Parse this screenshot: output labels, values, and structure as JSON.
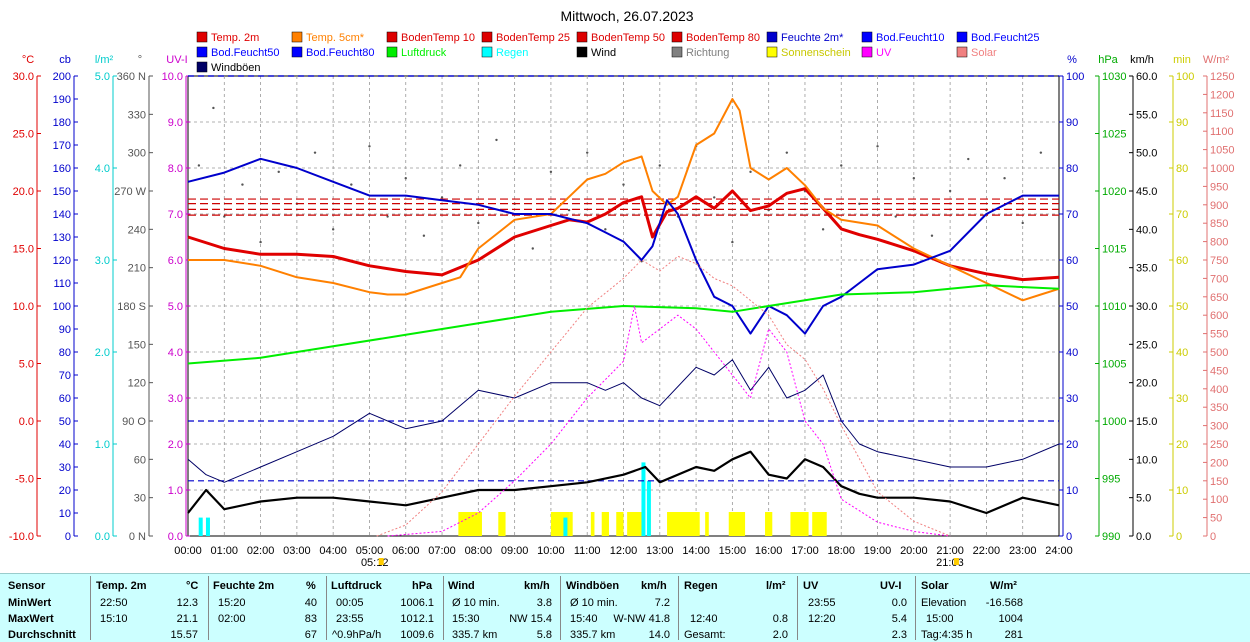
{
  "chart_data": {
    "type": "line",
    "title": "Mittwoch, 26.07.2023",
    "x": [
      "00:00",
      "01:00",
      "02:00",
      "03:00",
      "04:00",
      "05:00",
      "06:00",
      "07:00",
      "08:00",
      "09:00",
      "10:00",
      "11:00",
      "12:00",
      "13:00",
      "14:00",
      "15:00",
      "16:00",
      "17:00",
      "18:00",
      "19:00",
      "20:00",
      "21:00",
      "22:00",
      "23:00",
      "24:00"
    ],
    "markers": {
      "sunrise": "05:12",
      "sunset": "21:03"
    },
    "grid": true,
    "legend_position": "top",
    "axes": {
      "left": [
        {
          "unit": "°C",
          "ticks": [
            "30.0",
            "25.0",
            "20.0",
            "15.0",
            "10.0",
            "5.0",
            "0.0",
            "-5.0",
            "-10.0"
          ],
          "color": "#e00000"
        },
        {
          "unit": "cb",
          "ticks": [
            "200",
            "190",
            "180",
            "170",
            "160",
            "150",
            "140",
            "130",
            "120",
            "110",
            "100",
            "90",
            "80",
            "70",
            "60",
            "50",
            "40",
            "30",
            "20",
            "10",
            "0"
          ],
          "color": "#0000cc"
        },
        {
          "unit": "l/m²",
          "ticks": [
            "5.0",
            "4.0",
            "3.0",
            "2.0",
            "1.0",
            "0.0"
          ],
          "color": "#00cccc"
        },
        {
          "unit": "°",
          "ticks": [
            "360 N",
            "330",
            "300",
            "270 W",
            "240",
            "210",
            "180 S",
            "150",
            "120",
            "90 O",
            "60",
            "30",
            "0 N"
          ],
          "color": "#555555"
        },
        {
          "unit": "UV-I",
          "ticks": [
            "10.0",
            "9.0",
            "8.0",
            "7.0",
            "6.0",
            "5.0",
            "4.0",
            "3.0",
            "2.0",
            "1.0",
            "0.0"
          ],
          "color": "#cc00cc"
        }
      ],
      "right": [
        {
          "unit": "%",
          "ticks": [
            "100",
            "90",
            "80",
            "70",
            "60",
            "50",
            "40",
            "30",
            "20",
            "10",
            "0"
          ],
          "color": "#0000cc"
        },
        {
          "unit": "hPa",
          "ticks": [
            "1030",
            "1025",
            "1020",
            "1015",
            "1010",
            "1005",
            "1000",
            "995",
            "990"
          ],
          "color": "#00aa00"
        },
        {
          "unit": "km/h",
          "ticks": [
            "60.0",
            "55.0",
            "50.0",
            "45.0",
            "40.0",
            "35.0",
            "30.0",
            "25.0",
            "20.0",
            "15.0",
            "10.0",
            "5.0",
            "0.0"
          ],
          "color": "#000000"
        },
        {
          "unit": "min",
          "ticks": [
            "100",
            "90",
            "80",
            "70",
            "60",
            "50",
            "40",
            "30",
            "20",
            "10",
            "0"
          ],
          "color": "#cccc00"
        },
        {
          "unit": "W/m²",
          "ticks": [
            "1250",
            "1200",
            "1150",
            "1100",
            "1050",
            "1000",
            "950",
            "900",
            "850",
            "800",
            "750",
            "700",
            "650",
            "600",
            "550",
            "500",
            "450",
            "400",
            "350",
            "300",
            "250",
            "200",
            "150",
            "100",
            "50",
            "0"
          ],
          "color": "#e07070"
        }
      ]
    },
    "legend": [
      {
        "name": "Temp. 2m",
        "color": "#e00000"
      },
      {
        "name": "Temp. 5cm*",
        "color": "#ff8000"
      },
      {
        "name": "BodenTemp 10",
        "color": "#dd0000"
      },
      {
        "name": "BodenTemp 25",
        "color": "#dd0000"
      },
      {
        "name": "BodenTemp 50",
        "color": "#dd0000"
      },
      {
        "name": "BodenTemp 80",
        "color": "#dd0000"
      },
      {
        "name": "Feuchte 2m*",
        "color": "#0000cc"
      },
      {
        "name": "Bod.Feucht10",
        "color": "#0000ff"
      },
      {
        "name": "Bod.Feucht25",
        "color": "#0000ff"
      },
      {
        "name": "Bod.Feucht50",
        "color": "#0000ff"
      },
      {
        "name": "Bod.Feucht80",
        "color": "#0000ff"
      },
      {
        "name": "Luftdruck",
        "color": "#00ee00"
      },
      {
        "name": "Regen",
        "color": "#00ffff"
      },
      {
        "name": "Wind",
        "color": "#000000"
      },
      {
        "name": "Richtung",
        "color": "#808080"
      },
      {
        "name": "Sonnenschein",
        "color": "#ffff00"
      },
      {
        "name": "UV",
        "color": "#ff00ff"
      },
      {
        "name": "Solar",
        "color": "#f08080"
      },
      {
        "name": "Windböen",
        "color": "#000066"
      }
    ],
    "series": [
      {
        "name": "Temp. 2m",
        "axis": "°C",
        "color": "#e00000",
        "x": [
          0,
          1,
          2,
          3,
          4,
          5,
          6,
          7,
          8,
          9,
          10,
          10.5,
          11,
          11.5,
          12,
          12.5,
          12.8,
          13.2,
          13.5,
          14,
          14.5,
          15,
          15.5,
          16,
          16.5,
          17,
          17.5,
          18,
          18.5,
          19,
          20,
          21,
          22,
          23,
          24
        ],
        "y": [
          16.0,
          15.0,
          14.5,
          14.5,
          14.3,
          13.5,
          13.0,
          12.7,
          14.0,
          16.0,
          17.0,
          17.5,
          17.3,
          18.0,
          19.0,
          19.5,
          16.0,
          18.2,
          18.5,
          19.5,
          18.5,
          20.0,
          18.3,
          18.7,
          19.8,
          20.2,
          18.5,
          16.7,
          16.2,
          15.8,
          14.8,
          13.5,
          12.8,
          12.3,
          12.5
        ]
      },
      {
        "name": "Temp. 5cm*",
        "axis": "°C",
        "color": "#ff8000",
        "x": [
          0,
          1,
          2,
          3,
          4,
          5,
          5.5,
          6,
          7,
          7.5,
          8,
          9,
          10,
          10.5,
          11,
          11.5,
          12,
          12.5,
          12.8,
          13.2,
          13.5,
          14,
          14.5,
          15,
          15.2,
          15.5,
          16,
          16.5,
          17,
          17.5,
          18,
          19,
          20,
          21,
          22,
          23,
          23.5,
          24
        ],
        "y": [
          14.0,
          14.0,
          13.5,
          12.5,
          12.0,
          11.2,
          11.0,
          11.0,
          12.0,
          12.5,
          15.0,
          17.5,
          18.0,
          19.5,
          21.0,
          21.5,
          22.5,
          23.0,
          20.0,
          18.8,
          19.5,
          24.0,
          25.0,
          28.0,
          27.0,
          22.0,
          21.0,
          22.0,
          20.5,
          18.5,
          17.5,
          17.0,
          15.0,
          13.5,
          12.0,
          10.5,
          11.0,
          11.5
        ]
      },
      {
        "name": "Feuchte 2m*",
        "axis": "%",
        "color": "#0000cc",
        "x": [
          0,
          1,
          2,
          3,
          4,
          5,
          6,
          7,
          8,
          9,
          10,
          10.5,
          11,
          11.5,
          12,
          12.5,
          12.8,
          13.2,
          13.5,
          14,
          14.5,
          15,
          15.5,
          16,
          16.5,
          17,
          17.5,
          18,
          18.5,
          19,
          20,
          21,
          22,
          23,
          24
        ],
        "y": [
          77,
          79,
          82,
          80,
          77,
          74,
          74,
          73,
          72,
          70,
          70,
          69,
          68,
          66,
          64,
          60,
          63,
          73,
          70,
          60,
          52,
          50,
          44,
          50,
          48,
          44,
          50,
          52,
          55,
          58,
          59,
          62,
          70,
          74,
          74
        ]
      },
      {
        "name": "Luftdruck",
        "axis": "hPa",
        "color": "#00ee00",
        "x": [
          0,
          2,
          4,
          6,
          8,
          10,
          12,
          14,
          15,
          16,
          18,
          20,
          22,
          24
        ],
        "y": [
          1005.0,
          1005.5,
          1006.5,
          1007.5,
          1008.5,
          1009.5,
          1010.0,
          1009.8,
          1009.5,
          1010.0,
          1011.0,
          1011.2,
          1011.8,
          1011.5
        ]
      },
      {
        "name": "Wind",
        "axis": "km/h",
        "color": "#000000",
        "x": [
          0,
          0.5,
          1,
          2,
          3,
          4,
          5,
          6,
          7,
          8,
          9,
          10,
          11,
          12,
          12.6,
          13,
          14,
          14.5,
          15,
          15.5,
          16,
          16.5,
          17,
          17.5,
          18,
          18.5,
          19,
          20,
          21,
          22,
          23,
          24
        ],
        "y": [
          3,
          6,
          3.5,
          4.5,
          5,
          5,
          4.5,
          4,
          5,
          6,
          6,
          6.5,
          7,
          8,
          9,
          7,
          9,
          8.5,
          10,
          11,
          8,
          7.5,
          10,
          9,
          6.5,
          5.5,
          5,
          5,
          4.5,
          3,
          5,
          4
        ]
      },
      {
        "name": "Windböen",
        "axis": "km/h",
        "color": "#000066",
        "x": [
          0,
          0.5,
          1,
          2,
          3,
          4,
          5,
          6,
          7,
          8,
          9,
          10,
          11,
          11.5,
          12,
          12.5,
          13,
          14,
          14.5,
          15,
          15.5,
          16,
          16.5,
          17,
          17.5,
          18,
          18.5,
          19,
          20,
          21,
          22,
          23,
          24
        ],
        "y": [
          10,
          8,
          7,
          9,
          11,
          13,
          16,
          14,
          15,
          19,
          18,
          20,
          20,
          19,
          20,
          18,
          17,
          22,
          21,
          23,
          19,
          22,
          18,
          19,
          21,
          15,
          12,
          11,
          10,
          9,
          9,
          10,
          12
        ]
      },
      {
        "name": "UV",
        "axis": "UV-I",
        "color": "#ff00ff",
        "x": [
          5.5,
          7,
          8,
          9,
          10,
          11,
          12,
          12.3,
          12.5,
          13,
          13.5,
          14,
          14.5,
          15,
          15.5,
          16,
          16.5,
          17,
          17.5,
          18,
          19,
          20,
          21
        ],
        "y": [
          0,
          0.1,
          0.5,
          1.2,
          2.0,
          3.0,
          3.8,
          5.0,
          4.2,
          4.5,
          4.8,
          4.5,
          4.0,
          3.5,
          3.0,
          4.5,
          4.0,
          2.5,
          2.0,
          0.8,
          0.3,
          0.1,
          0
        ]
      },
      {
        "name": "Solar",
        "axis": "W/m²",
        "color": "#f08080",
        "x": [
          5.2,
          6,
          7,
          8,
          9,
          10,
          11,
          12,
          12.5,
          13,
          13.5,
          14,
          14.5,
          15,
          15.5,
          16,
          16.5,
          17,
          17.5,
          18,
          19,
          20,
          21
        ],
        "y": [
          0,
          30,
          120,
          250,
          380,
          500,
          620,
          700,
          750,
          720,
          760,
          740,
          700,
          680,
          640,
          600,
          520,
          480,
          400,
          300,
          120,
          40,
          0
        ]
      }
    ],
    "soil_temperatures": [
      {
        "name": "BodenTemp 10",
        "axis": "°C",
        "value": 19.3
      },
      {
        "name": "BodenTemp 25",
        "axis": "°C",
        "value": 18.9
      },
      {
        "name": "BodenTemp 50",
        "axis": "°C",
        "value": 18.4
      },
      {
        "name": "BodenTemp 80",
        "axis": "°C",
        "value": 17.9
      }
    ],
    "soil_moisture": [
      {
        "name": "Bod.Feucht10",
        "axis": "%",
        "value": 100
      },
      {
        "name": "Bod.Feucht25",
        "axis": "%",
        "value": 100
      },
      {
        "name": "Bod.Feucht50",
        "axis": "%",
        "value": 25
      },
      {
        "name": "Bod.Feucht80",
        "axis": "%",
        "value": 12
      }
    ],
    "direction_points": [
      {
        "x": 0.3,
        "y": 290
      },
      {
        "x": 0.7,
        "y": 335
      },
      {
        "x": 1.0,
        "y": 250
      },
      {
        "x": 1.5,
        "y": 275
      },
      {
        "x": 2.0,
        "y": 230
      },
      {
        "x": 2.5,
        "y": 285
      },
      {
        "x": 3.0,
        "y": 260
      },
      {
        "x": 3.5,
        "y": 300
      },
      {
        "x": 4.0,
        "y": 240
      },
      {
        "x": 4.5,
        "y": 275
      },
      {
        "x": 5.0,
        "y": 305
      },
      {
        "x": 5.5,
        "y": 250
      },
      {
        "x": 6.0,
        "y": 280
      },
      {
        "x": 6.5,
        "y": 235
      },
      {
        "x": 7.0,
        "y": 265
      },
      {
        "x": 7.5,
        "y": 290
      },
      {
        "x": 8.0,
        "y": 245
      },
      {
        "x": 8.5,
        "y": 310
      },
      {
        "x": 9.0,
        "y": 260
      },
      {
        "x": 9.5,
        "y": 225
      },
      {
        "x": 10.0,
        "y": 285
      },
      {
        "x": 10.5,
        "y": 255
      },
      {
        "x": 11.0,
        "y": 300
      },
      {
        "x": 11.5,
        "y": 240
      },
      {
        "x": 12.0,
        "y": 275
      },
      {
        "x": 12.5,
        "y": 215
      },
      {
        "x": 13.0,
        "y": 290
      },
      {
        "x": 13.5,
        "y": 250
      },
      {
        "x": 14.0,
        "y": 305
      },
      {
        "x": 14.5,
        "y": 265
      },
      {
        "x": 15.0,
        "y": 230
      },
      {
        "x": 15.5,
        "y": 285
      },
      {
        "x": 16.0,
        "y": 255
      },
      {
        "x": 16.5,
        "y": 300
      },
      {
        "x": 17.0,
        "y": 270
      },
      {
        "x": 17.5,
        "y": 240
      },
      {
        "x": 18.0,
        "y": 290
      },
      {
        "x": 18.5,
        "y": 260
      },
      {
        "x": 19.0,
        "y": 305
      },
      {
        "x": 19.5,
        "y": 250
      },
      {
        "x": 20.0,
        "y": 280
      },
      {
        "x": 20.5,
        "y": 235
      },
      {
        "x": 21.0,
        "y": 270
      },
      {
        "x": 21.5,
        "y": 295
      },
      {
        "x": 22.0,
        "y": 255
      },
      {
        "x": 22.5,
        "y": 280
      },
      {
        "x": 23.0,
        "y": 245
      },
      {
        "x": 23.5,
        "y": 300
      }
    ],
    "rain_bars": [
      {
        "x": 0.35,
        "value": 0.2
      },
      {
        "x": 0.55,
        "value": 0.2
      },
      {
        "x": 10.4,
        "value": 0.2
      },
      {
        "x": 12.55,
        "value": 0.8
      },
      {
        "x": 12.7,
        "value": 0.6
      }
    ],
    "sunshine_intervals": [
      [
        7.45,
        8.1
      ],
      [
        8.55,
        8.75
      ],
      [
        10.0,
        10.5
      ],
      [
        10.5,
        10.6
      ],
      [
        11.1,
        11.2
      ],
      [
        11.4,
        11.6
      ],
      [
        11.8,
        12.0
      ],
      [
        12.1,
        12.5
      ],
      [
        12.65,
        12.75
      ],
      [
        13.2,
        14.1
      ],
      [
        14.25,
        14.35
      ],
      [
        14.9,
        15.35
      ],
      [
        15.9,
        16.1
      ],
      [
        16.6,
        17.1
      ],
      [
        17.2,
        17.6
      ]
    ]
  },
  "stats": {
    "headers": {
      "sensor": "Sensor",
      "temp": "Temp. 2m",
      "temp_unit": "°C",
      "hum": "Feuchte 2m",
      "hum_unit": "%",
      "press": "Luftdruck",
      "press_unit": "hPa",
      "wind": "Wind",
      "wind_unit": "km/h",
      "gust": "Windböen",
      "gust_unit": "km/h",
      "rain": "Regen",
      "rain_unit": "l/m²",
      "uv": "UV",
      "uv_unit": "UV-I",
      "solar": "Solar",
      "solar_unit": "W/m²"
    },
    "row_labels": [
      "MinWert",
      "MaxWert",
      "Durchschnitt"
    ],
    "temp": [
      [
        "22:50",
        "12.3"
      ],
      [
        "15:10",
        "21.1"
      ],
      [
        "",
        "15.57"
      ]
    ],
    "hum": [
      [
        "15:20",
        "40"
      ],
      [
        "02:00",
        "83"
      ],
      [
        "",
        "67"
      ]
    ],
    "press": [
      [
        "00:05",
        "1006.1"
      ],
      [
        "23:55",
        "1012.1"
      ],
      [
        "^0.9hPa/h",
        "1009.6"
      ]
    ],
    "wind": [
      [
        "Ø 10 min.",
        "3.8"
      ],
      [
        "15:30",
        "NW 15.4"
      ],
      [
        "335.7 km",
        "5.8"
      ]
    ],
    "gust": [
      [
        "Ø 10 min.",
        "7.2"
      ],
      [
        "15:40",
        "W-NW 41.8"
      ],
      [
        "335.7 km",
        "14.0"
      ]
    ],
    "rain": [
      [
        "",
        ""
      ],
      [
        "12:40",
        "0.8"
      ],
      [
        "Gesamt:",
        "2.0"
      ]
    ],
    "uv": [
      [
        "23:55",
        "0.0"
      ],
      [
        "12:20",
        "5.4"
      ],
      [
        "",
        "2.3"
      ]
    ],
    "solar": [
      [
        "Elevation",
        "-16.568"
      ],
      [
        "15:00",
        "1004"
      ],
      [
        "Tag:4:35 h",
        "281"
      ]
    ]
  }
}
